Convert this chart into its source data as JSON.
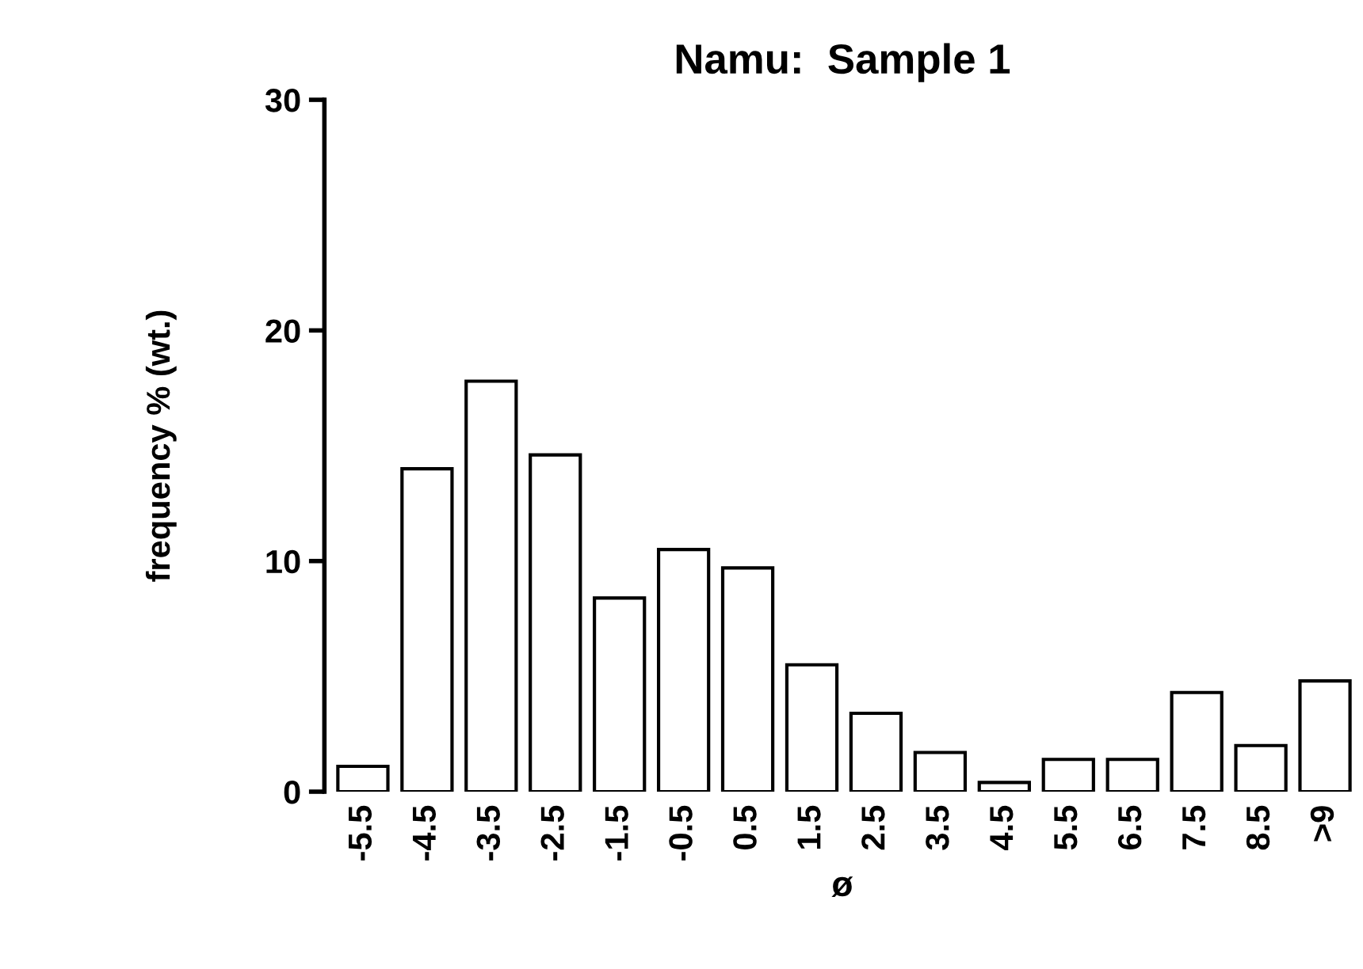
{
  "chart_data": {
    "type": "bar",
    "title": "Namu:  Sample 1",
    "xlabel": "ø",
    "ylabel": "frequency % (wt.)",
    "categories": [
      "-5.5",
      "-4.5",
      "-3.5",
      "-2.5",
      "-1.5",
      "-0.5",
      "0.5",
      "1.5",
      "2.5",
      "3.5",
      "4.5",
      "5.5",
      "6.5",
      "7.5",
      "8.5",
      ">9"
    ],
    "values": [
      1.1,
      14,
      17.8,
      14.6,
      8.4,
      10.5,
      9.7,
      5.5,
      3.4,
      1.7,
      0.4,
      1.4,
      1.4,
      4.3,
      2.0,
      4.8
    ],
    "color": "#ffffff",
    "ylim": [
      0,
      30
    ],
    "yticks": [
      0,
      10,
      20,
      30
    ],
    "grid": false
  }
}
